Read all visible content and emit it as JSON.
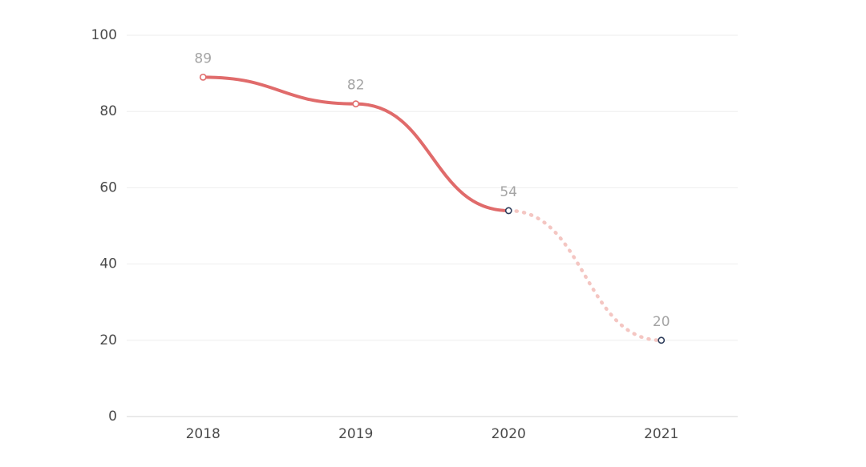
{
  "chart_data": {
    "type": "line",
    "categories": [
      "2018",
      "2019",
      "2020",
      "2021"
    ],
    "series": [
      {
        "values": [
          89,
          82,
          54,
          20
        ],
        "solid_until_index": 2,
        "color": "#e06b6b",
        "projected_color": "#f4c6c2",
        "point_colors": [
          "#e06b6b",
          "#e06b6b",
          "#2f3e5c",
          "#2f3e5c"
        ]
      }
    ],
    "data_labels": [
      "89",
      "82",
      "54",
      "20"
    ],
    "y_ticks": [
      "0",
      "20",
      "40",
      "60",
      "80",
      "100"
    ],
    "ylim": [
      0,
      100
    ],
    "grid": true,
    "smooth": true,
    "title": "",
    "xlabel": "",
    "ylabel": ""
  }
}
